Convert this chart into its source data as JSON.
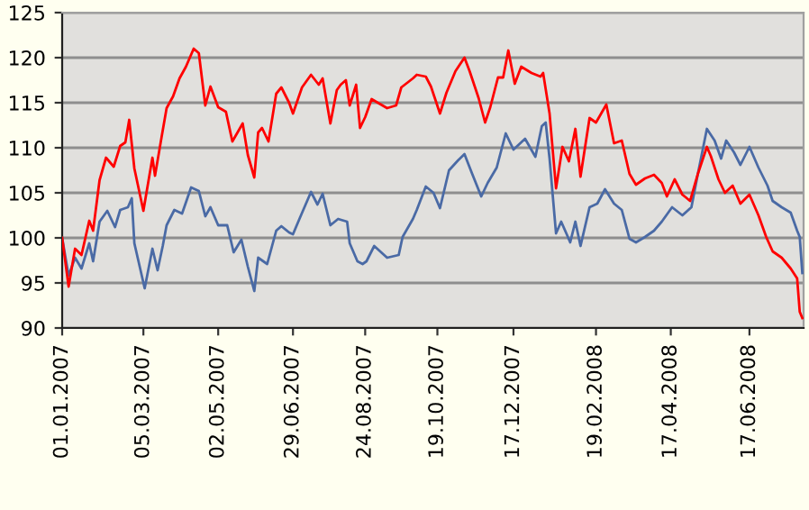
{
  "chart_data": {
    "type": "line",
    "xlim": [
      "2007-01-01",
      "2008-07-29"
    ],
    "ylim": [
      90,
      125
    ],
    "yticks": [
      90,
      95,
      100,
      105,
      110,
      115,
      120,
      125
    ],
    "xticks": [
      {
        "value": "2007-01-01",
        "label": "01.01.2007"
      },
      {
        "value": "2007-03-05",
        "label": "05.03.2007"
      },
      {
        "value": "2007-05-02",
        "label": "02.05.2007"
      },
      {
        "value": "2007-06-29",
        "label": "29.06.2007"
      },
      {
        "value": "2007-08-24",
        "label": "24.08.2007"
      },
      {
        "value": "2007-10-19",
        "label": "19.10.2007"
      },
      {
        "value": "2007-12-17",
        "label": "17.12.2007"
      },
      {
        "value": "2008-02-19",
        "label": "19.02.2008"
      },
      {
        "value": "2008-04-17",
        "label": "17.04.2008"
      },
      {
        "value": "2008-06-17",
        "label": "17.06.2008"
      }
    ],
    "grid": "y",
    "marker": "none",
    "line_style": "solid",
    "series": [
      {
        "color": "#4a6aa5",
        "x": [
          "2007-01-01",
          "2007-01-06",
          "2007-01-11",
          "2007-01-16",
          "2007-01-22",
          "2007-01-25",
          "2007-01-30",
          "2007-02-05",
          "2007-02-11",
          "2007-02-15",
          "2007-02-21",
          "2007-02-24",
          "2007-02-26",
          "2007-03-06",
          "2007-03-12",
          "2007-03-16",
          "2007-03-20",
          "2007-03-23",
          "2007-03-29",
          "2007-04-04",
          "2007-04-11",
          "2007-04-17",
          "2007-04-22",
          "2007-04-26",
          "2007-05-02",
          "2007-05-09",
          "2007-05-14",
          "2007-05-20",
          "2007-05-25",
          "2007-05-30",
          "2007-06-02",
          "2007-06-09",
          "2007-06-16",
          "2007-06-20",
          "2007-06-26",
          "2007-06-29",
          "2007-07-04",
          "2007-07-13",
          "2007-07-18",
          "2007-07-22",
          "2007-07-28",
          "2007-08-03",
          "2007-08-10",
          "2007-08-12",
          "2007-08-18",
          "2007-08-22",
          "2007-08-25",
          "2007-08-31",
          "2007-09-10",
          "2007-09-19",
          "2007-09-22",
          "2007-09-30",
          "2007-10-03",
          "2007-10-10",
          "2007-10-16",
          "2007-10-21",
          "2007-10-28",
          "2007-11-04",
          "2007-11-09",
          "2007-11-15",
          "2007-11-22",
          "2007-11-27",
          "2007-12-04",
          "2007-12-11",
          "2007-12-17",
          "2007-12-26",
          "2008-01-03",
          "2008-01-08",
          "2008-01-11",
          "2008-01-14",
          "2008-01-19",
          "2008-01-23",
          "2008-01-27",
          "2008-01-30",
          "2008-02-03",
          "2008-02-07",
          "2008-02-14",
          "2008-02-20",
          "2008-02-26",
          "2008-03-04",
          "2008-03-10",
          "2008-03-16",
          "2008-03-21",
          "2008-03-28",
          "2008-04-04",
          "2008-04-10",
          "2008-04-18",
          "2008-04-26",
          "2008-05-03",
          "2008-05-08",
          "2008-05-15",
          "2008-05-21",
          "2008-05-26",
          "2008-05-30",
          "2008-06-05",
          "2008-06-10",
          "2008-06-17",
          "2008-06-24",
          "2008-07-01",
          "2008-07-05",
          "2008-07-12",
          "2008-07-19",
          "2008-07-24",
          "2008-07-26",
          "2008-07-28"
        ],
        "values": [
          100,
          95.8,
          97.8,
          96.6,
          99.4,
          97.4,
          101.8,
          103,
          101.2,
          103.1,
          103.4,
          104.4,
          99.4,
          94.4,
          98.8,
          96.4,
          99.1,
          101.4,
          103.1,
          102.7,
          105.6,
          105.2,
          102.4,
          103.4,
          101.4,
          101.4,
          98.4,
          99.8,
          96.8,
          94.1,
          97.8,
          97.1,
          100.8,
          101.3,
          100.6,
          100.4,
          102.1,
          105.1,
          103.7,
          104.9,
          101.4,
          102.1,
          101.8,
          99.4,
          97.4,
          97.1,
          97.4,
          99.1,
          97.8,
          98.1,
          100.1,
          102.1,
          103.1,
          105.7,
          105,
          103.3,
          107.5,
          108.6,
          109.3,
          107.1,
          104.6,
          106.1,
          107.8,
          111.6,
          109.8,
          111,
          109,
          112.4,
          112.8,
          108.8,
          100.5,
          101.8,
          100.5,
          99.5,
          101.8,
          99.1,
          103.4,
          103.8,
          105.4,
          103.8,
          103.1,
          99.9,
          99.5,
          100.1,
          100.8,
          101.8,
          103.4,
          102.5,
          103.4,
          107.1,
          112.1,
          110.8,
          108.8,
          110.8,
          109.5,
          108.1,
          110.1,
          107.8,
          105.8,
          104.1,
          103.4,
          102.8,
          100.8,
          100.1,
          96.1
        ]
      },
      {
        "color": "#ff0000",
        "x": [
          "2007-01-01",
          "2007-01-06",
          "2007-01-11",
          "2007-01-16",
          "2007-01-22",
          "2007-01-25",
          "2007-01-30",
          "2007-02-04",
          "2007-02-10",
          "2007-02-15",
          "2007-02-19",
          "2007-02-22",
          "2007-02-26",
          "2007-03-05",
          "2007-03-12",
          "2007-03-14",
          "2007-03-19",
          "2007-03-23",
          "2007-03-28",
          "2007-04-02",
          "2007-04-07",
          "2007-04-13",
          "2007-04-17",
          "2007-04-22",
          "2007-04-26",
          "2007-05-02",
          "2007-05-08",
          "2007-05-13",
          "2007-05-21",
          "2007-05-25",
          "2007-05-30",
          "2007-06-02",
          "2007-06-05",
          "2007-06-10",
          "2007-06-16",
          "2007-06-20",
          "2007-06-26",
          "2007-06-29",
          "2007-07-06",
          "2007-07-13",
          "2007-07-19",
          "2007-07-22",
          "2007-07-28",
          "2007-08-02",
          "2007-08-05",
          "2007-08-09",
          "2007-08-12",
          "2007-08-17",
          "2007-08-20",
          "2007-08-24",
          "2007-08-29",
          "2007-09-10",
          "2007-09-17",
          "2007-09-21",
          "2007-09-30",
          "2007-10-03",
          "2007-10-10",
          "2007-10-14",
          "2007-10-21",
          "2007-10-26",
          "2007-11-02",
          "2007-11-09",
          "2007-11-13",
          "2007-11-20",
          "2007-11-25",
          "2007-11-29",
          "2007-12-05",
          "2007-12-09",
          "2007-12-13",
          "2007-12-18",
          "2007-12-23",
          "2007-12-31",
          "2008-01-07",
          "2008-01-09",
          "2008-01-14",
          "2008-01-19",
          "2008-01-24",
          "2008-01-29",
          "2008-02-03",
          "2008-02-07",
          "2008-02-14",
          "2008-02-19",
          "2008-02-27",
          "2008-03-04",
          "2008-03-10",
          "2008-03-16",
          "2008-03-21",
          "2008-03-28",
          "2008-04-04",
          "2008-04-10",
          "2008-04-14",
          "2008-04-20",
          "2008-04-26",
          "2008-05-02",
          "2008-05-08",
          "2008-05-15",
          "2008-05-18",
          "2008-05-24",
          "2008-05-29",
          "2008-06-04",
          "2008-06-10",
          "2008-06-17",
          "2008-06-24",
          "2008-06-30",
          "2008-07-05",
          "2008-07-12",
          "2008-07-19",
          "2008-07-24",
          "2008-07-26",
          "2008-07-28"
        ],
        "values": [
          100,
          94.6,
          98.8,
          98.1,
          101.9,
          100.8,
          106.4,
          108.9,
          107.9,
          110.2,
          110.6,
          113.1,
          107.7,
          103,
          108.9,
          106.9,
          111.1,
          114.4,
          115.7,
          117.7,
          119,
          121,
          120.5,
          114.7,
          116.8,
          114.5,
          114,
          110.7,
          112.7,
          109.2,
          106.7,
          111.7,
          112.2,
          110.7,
          116,
          116.7,
          115,
          113.8,
          116.7,
          118.1,
          117,
          117.7,
          112.7,
          116.4,
          117,
          117.5,
          114.7,
          117,
          112.2,
          113.4,
          115.4,
          114.4,
          114.7,
          116.7,
          117.7,
          118.1,
          117.9,
          116.8,
          113.8,
          116.1,
          118.5,
          120,
          118.5,
          115.5,
          112.8,
          114.5,
          117.8,
          117.8,
          120.8,
          117.1,
          119,
          118.3,
          117.9,
          118.3,
          113.8,
          105.5,
          110.1,
          108.5,
          112.1,
          106.8,
          113.3,
          112.8,
          114.8,
          110.5,
          110.8,
          107.1,
          105.9,
          106.6,
          107,
          106.1,
          104.6,
          106.5,
          104.8,
          104.1,
          107.1,
          110.1,
          109.1,
          106.5,
          105,
          105.8,
          103.8,
          104.8,
          102.5,
          100.1,
          98.5,
          97.8,
          96.6,
          95.5,
          91.8,
          91.1
        ]
      }
    ]
  }
}
